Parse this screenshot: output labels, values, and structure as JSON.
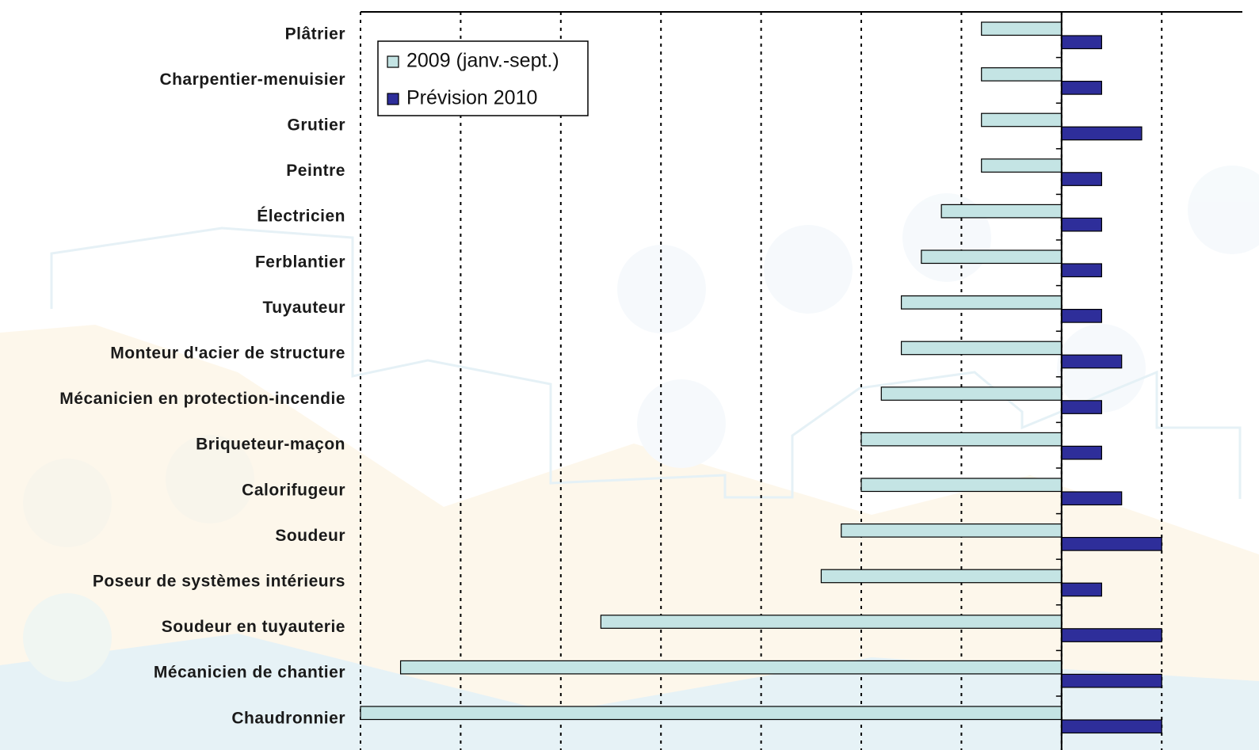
{
  "chart_data": {
    "type": "barh",
    "categories": [
      "Plâtrier",
      "Charpentier-menuisier",
      "Grutier",
      "Peintre",
      "Électricien",
      "Ferblantier",
      "Tuyauteur",
      "Monteur d'acier de structure",
      "Mécanicien en protection-incendie",
      "Briqueteur-maçon",
      "Calorifugeur",
      "Soudeur",
      "Poseur de systèmes intérieurs",
      "Soudeur en tuyauterie",
      "Mécanicien de chantier",
      "Chaudronnier"
    ],
    "series": [
      {
        "name": "2009 (janv.-sept.)",
        "color": "#c4e4e4",
        "values": [
          -4,
          -4,
          -4,
          -4,
          -6,
          -7,
          -8,
          -8,
          -9,
          -10,
          -10,
          -11,
          -12,
          -23,
          -33,
          -35
        ]
      },
      {
        "name": "Prévision 2010",
        "color": "#2e2e9a",
        "values": [
          2,
          2,
          4,
          2,
          2,
          2,
          2,
          3,
          2,
          2,
          3,
          5,
          2,
          5,
          5,
          5
        ]
      }
    ],
    "xlim": [
      -35,
      9.5
    ],
    "xticks": [
      -35,
      -30,
      -25,
      -20,
      -15,
      -10,
      -5,
      0,
      5
    ],
    "grid": true,
    "legend": "top-left"
  }
}
